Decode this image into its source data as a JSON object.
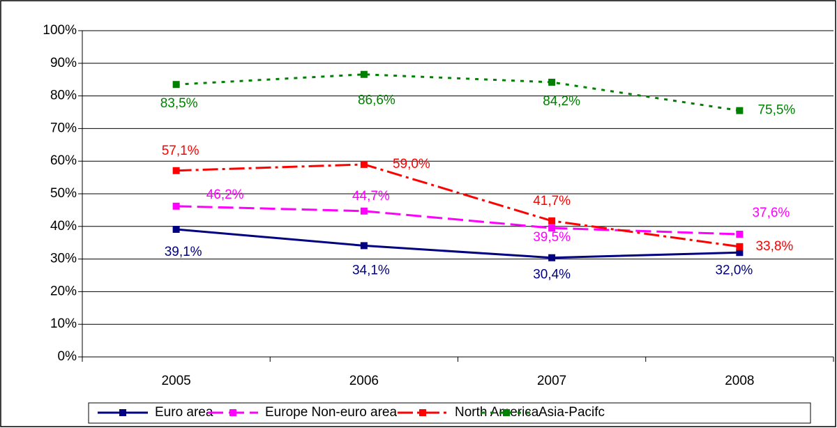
{
  "chart_data": {
    "type": "line",
    "categories": [
      "2005",
      "2006",
      "2007",
      "2008"
    ],
    "series": [
      {
        "name": "Euro area",
        "color": "#000080",
        "values": [
          39.1,
          34.1,
          30.4,
          32.0
        ],
        "value_labels": [
          "39,1%",
          "34,1%",
          "30,4%",
          "32,0%"
        ]
      },
      {
        "name": "Europe Non-euro area",
        "color": "#ff00ff",
        "values": [
          46.2,
          44.7,
          39.5,
          37.6
        ],
        "value_labels": [
          "46,2%",
          "44,7%",
          "39,5%",
          "37,6%"
        ]
      },
      {
        "name": "North America",
        "color": "#ff0000",
        "values": [
          57.1,
          59.0,
          41.7,
          33.8
        ],
        "value_labels": [
          "57,1%",
          "59,0%",
          "41,7%",
          "33,8%"
        ]
      },
      {
        "name": "Asia-Pacifc",
        "color": "#008000",
        "values": [
          83.5,
          86.6,
          84.2,
          75.5
        ],
        "value_labels": [
          "83,5%",
          "86,6%",
          "84,2%",
          "75,5%"
        ]
      }
    ],
    "ylim": [
      0,
      100
    ],
    "yticks": [
      {
        "value": 0,
        "label": "0%"
      },
      {
        "value": 10,
        "label": "10%"
      },
      {
        "value": 20,
        "label": "20%"
      },
      {
        "value": 30,
        "label": "30%"
      },
      {
        "value": 40,
        "label": "40%"
      },
      {
        "value": 50,
        "label": "50%"
      },
      {
        "value": 60,
        "label": "60%"
      },
      {
        "value": 70,
        "label": "70%"
      },
      {
        "value": 80,
        "label": "80%"
      },
      {
        "value": 90,
        "label": "90%"
      },
      {
        "value": 100,
        "label": "100%"
      }
    ],
    "grid": true,
    "legend": "bottom"
  }
}
